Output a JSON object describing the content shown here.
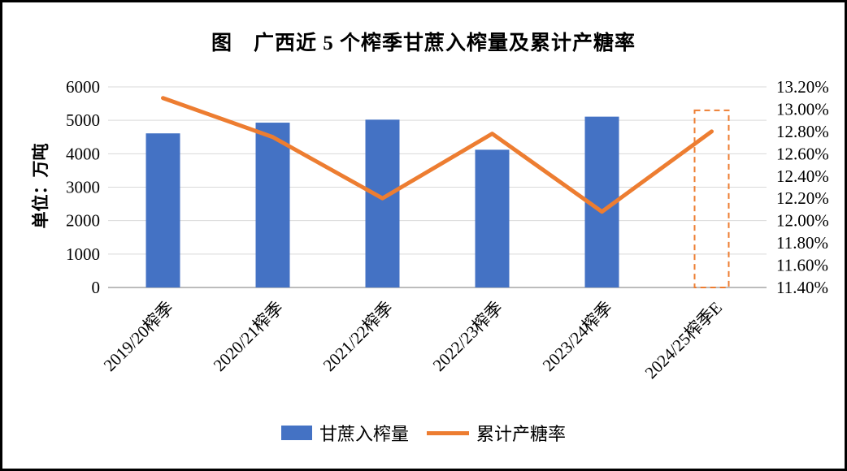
{
  "title": "图　广西近 5 个榨季甘蔗入榨量及累计产糖率",
  "chart_data": {
    "type": "bar",
    "subtype": "combo-bar-line-dual-axis",
    "categories": [
      "2019/20榨季",
      "2020/21榨季",
      "2021/22榨季",
      "2022/23榨季",
      "2023/24榨季",
      "2024/25榨季E"
    ],
    "series": [
      {
        "name": "甘蔗入榨量",
        "type": "bar",
        "axis": "left",
        "color": "#4472C4",
        "values": [
          4610,
          4930,
          5020,
          4120,
          5110,
          5300
        ],
        "estimated": [
          false,
          false,
          false,
          false,
          false,
          true
        ]
      },
      {
        "name": "累计产糖率",
        "type": "line",
        "axis": "right",
        "color": "#ED7D31",
        "values": [
          13.1,
          12.75,
          12.2,
          12.78,
          12.08,
          12.8
        ]
      }
    ],
    "left_axis": {
      "title": "单位：万吨",
      "min": 0,
      "max": 6000,
      "step": 1000,
      "ticks": [
        "0",
        "1000",
        "2000",
        "3000",
        "4000",
        "5000",
        "6000"
      ]
    },
    "right_axis": {
      "min": 11.4,
      "max": 13.2,
      "step": 0.2,
      "ticks": [
        "11.40%",
        "11.60%",
        "11.80%",
        "12.00%",
        "12.20%",
        "12.40%",
        "12.60%",
        "12.80%",
        "13.00%",
        "13.20%"
      ]
    },
    "grid": true,
    "legend_position": "bottom",
    "estimated_bar_style": "dashed-outline"
  },
  "colors": {
    "bar": "#4472C4",
    "line": "#ED7D31",
    "gridline": "#d9d9d9",
    "axis_line": "#a6a6a6",
    "background": "#ffffff",
    "border": "#000000"
  }
}
